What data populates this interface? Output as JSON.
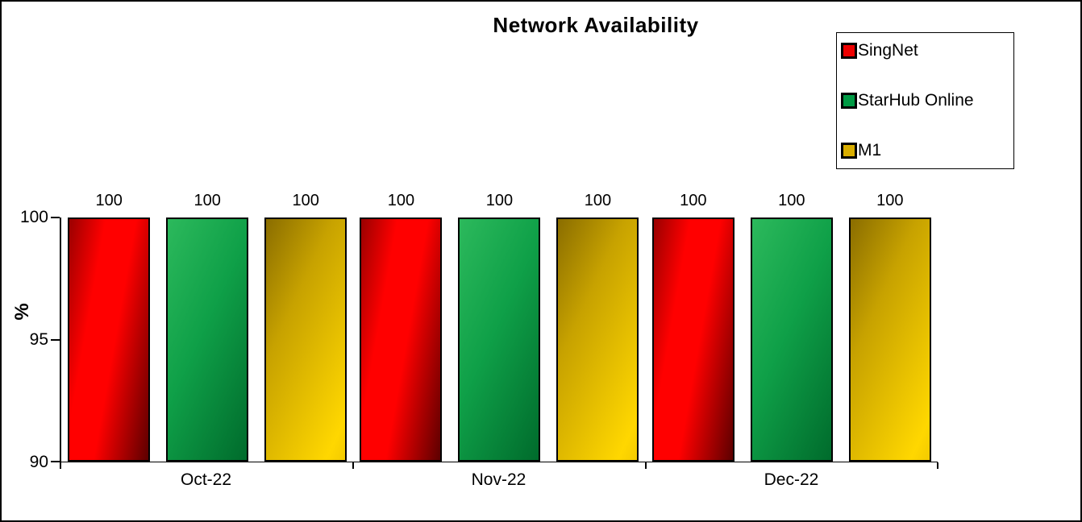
{
  "window": {
    "background": "#ffffff",
    "border_color": "#000000"
  },
  "chart_data": {
    "type": "bar",
    "title": "Network Availability",
    "xlabel": "",
    "ylabel": "%",
    "ylim": [
      90,
      100
    ],
    "yticks": [
      100,
      95,
      90
    ],
    "gridlines": false,
    "plot_background": "#ffffff",
    "legend_position": "top-right",
    "data_labels": true,
    "categories": [
      "Oct-22",
      "Nov-22",
      "Dec-22"
    ],
    "series": [
      {
        "name": "SingNet",
        "values": [
          100,
          100,
          100
        ],
        "legend_color": "#ee0000",
        "fill": {
          "angle": 100,
          "stops": [
            "#9a0000 0%",
            "#ff0000 30%",
            "#ff0000 55%",
            "#5c0000 100%"
          ]
        }
      },
      {
        "name": "StarHub Online",
        "values": [
          100,
          100,
          100
        ],
        "legend_color": "#009a44",
        "fill": {
          "angle": 115,
          "stops": [
            "#2cb95c 0%",
            "#0fa048 45%",
            "#006b2c 100%"
          ]
        }
      },
      {
        "name": "M1",
        "values": [
          100,
          100,
          100
        ],
        "legend_color": "#d9ae00",
        "fill": {
          "angle": 115,
          "stops": [
            "#8a6d00 0%",
            "#c7a200 35%",
            "#ffd700 90%",
            "#f3ca00 100%"
          ]
        }
      }
    ]
  }
}
